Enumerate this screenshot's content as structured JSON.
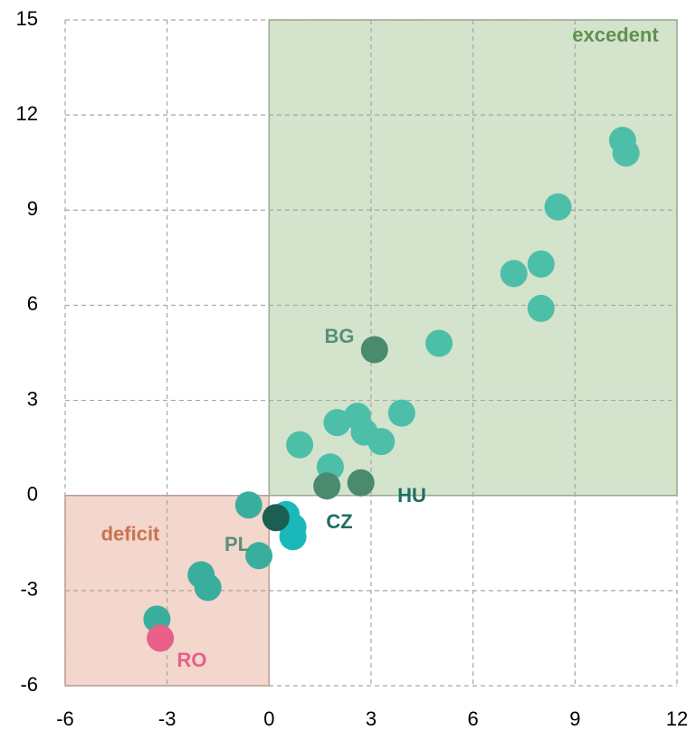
{
  "chart_data": {
    "type": "scatter",
    "xlim": [
      -6,
      12
    ],
    "xticks": [
      -6,
      -3,
      0,
      3,
      6,
      9,
      12
    ],
    "ylim": [
      -6,
      15
    ],
    "yticks": [
      -6,
      -3,
      0,
      3,
      6,
      9,
      12,
      15
    ],
    "grid": true,
    "regions": [
      {
        "label": "excedent",
        "x": [
          0,
          12
        ],
        "y": [
          0,
          15
        ],
        "color": "#d3e3cc",
        "edge": "#8fad84",
        "text_color": "#5f9150"
      },
      {
        "label": "deficit",
        "x": [
          -6,
          0
        ],
        "y": [
          -6,
          0
        ],
        "color": "#f3d6cc",
        "edge": "#c89888",
        "text_color": "#c8734f"
      }
    ],
    "series": [
      {
        "color": "#4dbfa8",
        "x": [
          10.4,
          10.5,
          8.5,
          7.2,
          8.0,
          8.0,
          5.0,
          3.9,
          2.6,
          2.0,
          2.8,
          3.3,
          0.9,
          1.8
        ],
        "values": [
          11.2,
          10.8,
          9.1,
          7.0,
          7.3,
          5.9,
          4.8,
          2.6,
          2.5,
          2.3,
          2.0,
          1.7,
          1.6,
          0.9
        ]
      },
      {
        "color": "#4a8a6e",
        "x": [
          3.1,
          1.7,
          2.7
        ],
        "values": [
          4.6,
          0.3,
          0.4
        ]
      },
      {
        "color": "#3aae9e",
        "x": [
          -0.6,
          -0.3,
          -2.0,
          -1.8,
          -3.3
        ],
        "values": [
          -0.3,
          -1.9,
          -2.5,
          -2.9,
          -3.9
        ]
      },
      {
        "color": "#1ab8b8",
        "x": [
          0.5,
          0.7,
          0.7
        ],
        "values": [
          -0.6,
          -1.0,
          -1.3
        ]
      },
      {
        "color": "#1c5e52",
        "x": [
          0.2
        ],
        "values": [
          -0.7
        ]
      },
      {
        "color": "#e8608a",
        "x": [
          -3.2
        ],
        "values": [
          -4.5
        ]
      }
    ],
    "annotations": [
      {
        "text": "BG",
        "color": "#5a8f78"
      },
      {
        "text": "HU",
        "color": "#1e6e62"
      },
      {
        "text": "CZ",
        "color": "#1e6e62"
      },
      {
        "text": "PL",
        "color": "#5a8f78"
      },
      {
        "text": "RO",
        "color": "#e8608a"
      }
    ]
  }
}
